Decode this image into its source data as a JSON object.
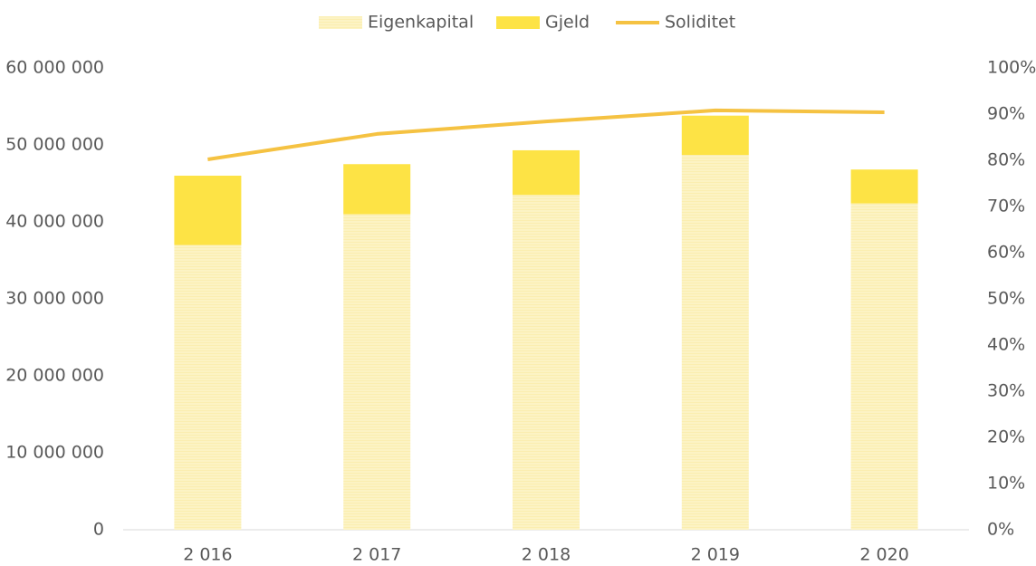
{
  "chart_data": {
    "type": "bar",
    "categories": [
      "2 016",
      "2 017",
      "2 018",
      "2 019",
      "2 020"
    ],
    "series": [
      {
        "name": "Eigenkapital",
        "color": "#fcf3c4",
        "values": [
          37000000,
          41000000,
          43500000,
          48700000,
          42400000
        ]
      },
      {
        "name": "Gjeld",
        "color": "#fde345",
        "values": [
          9000000,
          6500000,
          5800000,
          5100000,
          4400000
        ]
      },
      {
        "name": "Soliditet",
        "color": "#f5c242",
        "type": "line",
        "axis": "y2",
        "values": [
          80.2,
          85.7,
          88.4,
          90.8,
          90.4
        ]
      }
    ],
    "stacked": true,
    "ylim": [
      0,
      60000000
    ],
    "yticks": [
      0,
      {
        "value": 10000000,
        "label": "10 000 000"
      },
      {
        "value": 20000000,
        "label": "20 000 000"
      },
      {
        "value": 30000000,
        "label": "30 000 000"
      },
      {
        "value": 40000000,
        "label": "40 000 000"
      },
      {
        "value": 50000000,
        "label": "50 000 000"
      },
      {
        "value": 60000000,
        "label": "60 000 000"
      }
    ],
    "y2lim": [
      0,
      100
    ],
    "y2ticks": [
      {
        "value": 0,
        "label": "0%"
      },
      {
        "value": 10,
        "label": "10%"
      },
      {
        "value": 20,
        "label": "20%"
      },
      {
        "value": 30,
        "label": "30%"
      },
      {
        "value": 40,
        "label": "40%"
      },
      {
        "value": 50,
        "label": "50%"
      },
      {
        "value": 60,
        "label": "60%"
      },
      {
        "value": 70,
        "label": "70%"
      },
      {
        "value": 80,
        "label": "80%"
      },
      {
        "value": 90,
        "label": "90%"
      },
      {
        "value": 100,
        "label": "100%"
      }
    ],
    "legend": "top",
    "grid": false
  }
}
